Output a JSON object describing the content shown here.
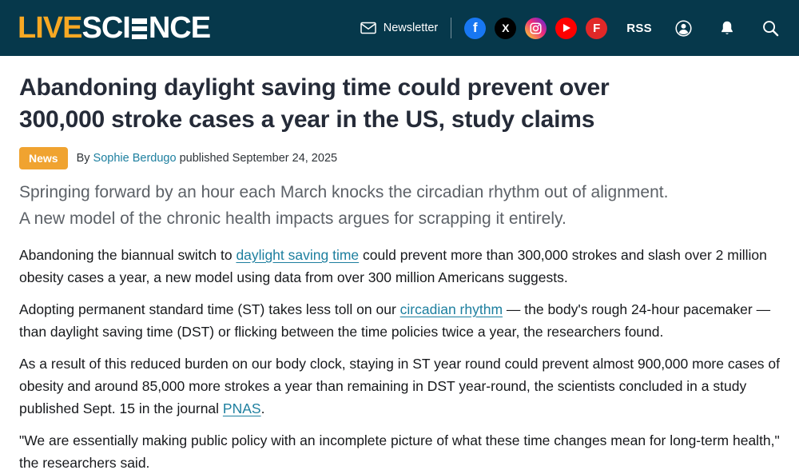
{
  "header": {
    "logo_live": "LIVE",
    "logo_sci": "SCI",
    "logo_nce": "NCE",
    "newsletter_label": "Newsletter",
    "rss_label": "RSS",
    "facebook_letter": "f",
    "x_letter": "X",
    "flipboard_letter": "F",
    "colors": {
      "header_bg": "#06384b",
      "logo_accent": "#f7a823",
      "badge_bg": "#f0a330",
      "link_teal": "#1d7f9f",
      "facebook": "#1877f2",
      "x": "#000000",
      "youtube": "#ff0000",
      "flipboard": "#e12828"
    }
  },
  "article": {
    "category_badge": "News",
    "byline_prefix": "By",
    "author": "Sophie Berdugo",
    "published_text": "published September 24, 2025",
    "title_lines": [
      "Abandoning daylight saving time could prevent over",
      "300,000 stroke cases a year in the US, study claims"
    ],
    "standfirst_lines": [
      "Springing forward by an hour each March knocks the circadian rhythm out of alignment.",
      "A new model of the chronic health impacts argues for scrapping it entirely."
    ],
    "paragraphs": [
      {
        "segments": [
          {
            "text": "Abandoning the biannual switch to ",
            "link": false
          },
          {
            "text": "daylight saving time",
            "link": true
          },
          {
            "text": " could prevent more than 300,000 strokes and slash over 2 million obesity cases a year, a new model using data from over 300 million Americans suggests.",
            "link": false
          }
        ]
      },
      {
        "segments": [
          {
            "text": "Adopting permanent standard time (ST) takes less toll on our ",
            "link": false
          },
          {
            "text": "circadian rhythm",
            "link": true
          },
          {
            "text": " — the body's rough 24-hour pacemaker — than daylight saving time (DST) or flicking between the time policies twice a year, the researchers found.",
            "link": false
          }
        ]
      },
      {
        "segments": [
          {
            "text": "As a result of this reduced burden on our body clock, staying in ST year round could prevent almost 900,000 more cases of obesity and around 85,000 more strokes a year than remaining in DST year-round, the scientists concluded in a study published Sept. 15 in the journal ",
            "link": false
          },
          {
            "text": "PNAS",
            "link": true
          },
          {
            "text": ".",
            "link": false
          }
        ]
      },
      {
        "segments": [
          {
            "text": "\"We are essentially making public policy with an incomplete picture of what these time changes mean for long-term health,\" the researchers said.",
            "link": false
          }
        ]
      }
    ]
  }
}
